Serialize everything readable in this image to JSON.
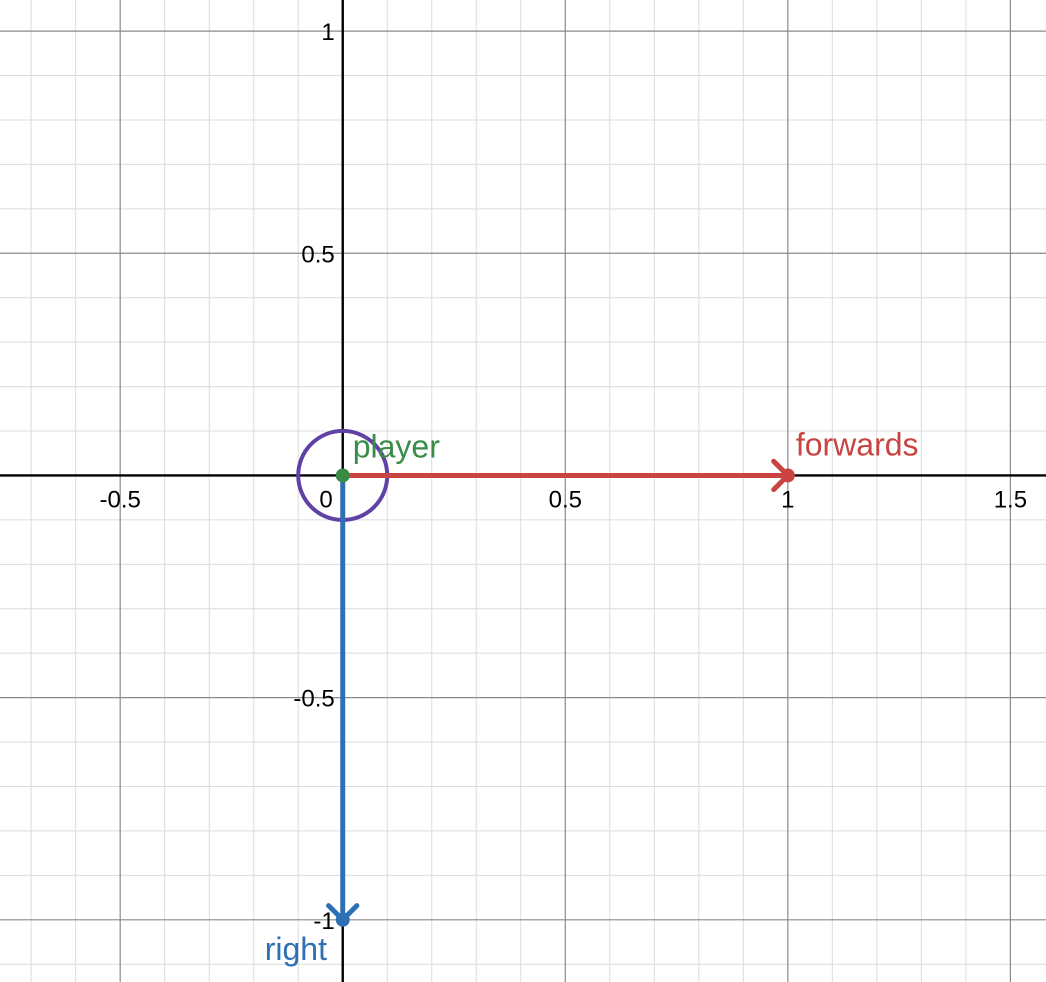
{
  "chart_data": {
    "type": "scatter",
    "xlim": [
      -0.77,
      1.58
    ],
    "ylim": [
      -1.14,
      1.07
    ],
    "grid": true,
    "major_step": 0.5,
    "minor_step": 0.1,
    "x_ticks": [
      {
        "value": -0.5,
        "label": "-0.5"
      },
      {
        "value": 0,
        "label": "0"
      },
      {
        "value": 0.5,
        "label": "0.5"
      },
      {
        "value": 1,
        "label": "1"
      },
      {
        "value": 1.5,
        "label": "1.5"
      }
    ],
    "y_ticks": [
      {
        "value": 1,
        "label": "1"
      },
      {
        "value": 0.5,
        "label": "0.5"
      },
      {
        "value": -0.5,
        "label": "-0.5"
      },
      {
        "value": -1,
        "label": "-1"
      }
    ],
    "points": [
      {
        "id": "player",
        "label": "player",
        "x": 0,
        "y": 0,
        "color": "#388c46"
      }
    ],
    "vectors": [
      {
        "id": "forwards",
        "label": "forwards",
        "from": [
          0,
          0
        ],
        "to": [
          1,
          0
        ],
        "color": "#c74440"
      },
      {
        "id": "right",
        "label": "right",
        "from": [
          0,
          0
        ],
        "to": [
          0,
          -1
        ],
        "color": "#2d70b3"
      }
    ],
    "circles": [
      {
        "id": "player-radius",
        "center": [
          0,
          0
        ],
        "radius": 0.1,
        "color": "#6042a6"
      }
    ]
  }
}
